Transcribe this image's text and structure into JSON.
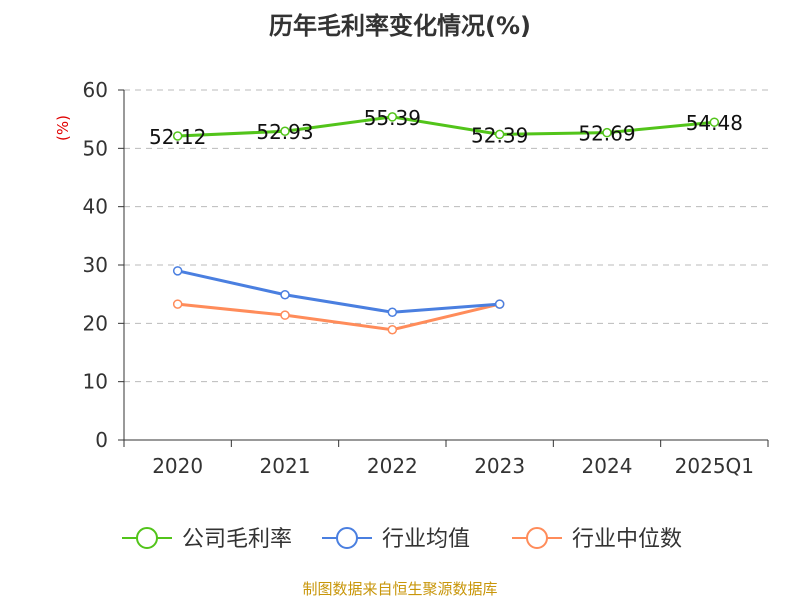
{
  "chart_data": {
    "type": "line",
    "title": "历年毛利率变化情况(%)",
    "ylabel": "(%)",
    "xlabel": "",
    "ylim": [
      0,
      60
    ],
    "yticks": [
      0,
      10,
      20,
      30,
      40,
      50,
      60
    ],
    "grid": true,
    "legend_position": "bottom",
    "categories": [
      "2020",
      "2021",
      "2022",
      "2023",
      "2024",
      "2025Q1"
    ],
    "series": [
      {
        "name": "公司毛利率",
        "color": "#52c41a",
        "values": [
          52.12,
          52.93,
          55.39,
          52.39,
          52.69,
          54.48
        ],
        "labels": [
          "52.12",
          "52.93",
          "55.39",
          "52.39",
          "52.69",
          "54.48"
        ]
      },
      {
        "name": "行业均值",
        "color": "#4a7fe0",
        "values": [
          29.0,
          24.9,
          21.9,
          23.3,
          null,
          null
        ]
      },
      {
        "name": "行业中位数",
        "color": "#ff8c5a",
        "values": [
          23.3,
          21.4,
          18.9,
          23.3,
          null,
          null
        ]
      }
    ],
    "source": "制图数据来自恒生聚源数据库"
  }
}
